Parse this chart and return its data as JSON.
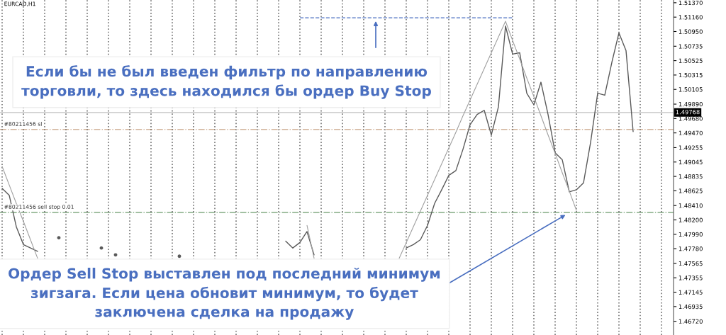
{
  "chart_data": {
    "type": "line",
    "title": "EURCAD,H1",
    "categories": [
      null,
      null,
      null,
      null,
      null,
      null,
      null,
      null,
      null,
      null,
      null,
      null,
      null,
      null,
      null,
      null,
      null,
      null,
      null,
      null,
      null,
      null,
      null,
      null,
      null,
      null,
      null,
      null,
      null,
      null,
      null,
      null,
      null,
      null,
      null,
      null,
      null,
      null,
      null,
      null,
      null,
      null,
      null,
      null,
      null,
      null,
      null,
      null,
      null,
      null,
      null,
      null,
      null,
      null,
      null,
      null,
      null,
      null,
      null,
      null,
      null,
      null,
      null,
      null,
      null,
      null,
      null,
      null,
      null,
      null,
      null,
      null,
      null,
      null,
      null,
      null,
      null,
      null,
      null,
      null,
      null,
      null,
      null,
      null,
      null,
      null,
      null,
      null,
      null,
      null,
      null,
      null,
      null,
      null,
      null
    ],
    "series": [
      {
        "color": "#5a5a5a",
        "values": [
          1.4866,
          1.4856,
          1.481,
          1.4784,
          1.4779,
          1.4774,
          null,
          null,
          1.4794,
          null,
          null,
          null,
          null,
          null,
          1.4779,
          null,
          1.4769,
          null,
          null,
          null,
          null,
          null,
          null,
          null,
          null,
          1.4767,
          null,
          null,
          null,
          null,
          null,
          null,
          null,
          null,
          null,
          null,
          null,
          null,
          null,
          null,
          1.4789,
          1.4779,
          1.4787,
          1.4803,
          1.4769,
          null,
          null,
          null,
          null,
          null,
          null,
          null,
          null,
          null,
          null,
          null,
          null,
          1.4779,
          1.4784,
          1.4791,
          1.4812,
          1.4844,
          1.4864,
          1.4885,
          1.4892,
          1.4923,
          1.4959,
          1.4974,
          1.498,
          1.4944,
          1.4985,
          1.5103,
          1.5062,
          1.5064,
          1.5005,
          1.4988,
          1.5021,
          1.4974,
          1.4918,
          1.4908,
          1.4861,
          1.4864,
          1.4874,
          1.4933,
          1.5005,
          1.5002,
          1.505,
          1.5093,
          1.5067,
          1.4949,
          null,
          null,
          null,
          null,
          null
        ]
      },
      {
        "color": "#a0a0a0",
        "values": [
          1.4898,
          1.4871,
          1.4844,
          1.4818,
          1.4791,
          1.4764,
          null,
          null,
          null,
          null,
          null,
          null,
          null,
          null,
          null,
          null,
          null,
          null,
          null,
          null,
          null,
          null,
          null,
          null,
          null,
          null,
          null,
          null,
          null,
          null,
          null,
          null,
          null,
          null,
          null,
          null,
          null,
          null,
          null,
          null,
          null,
          null,
          null,
          1.4812,
          1.4764,
          null,
          null,
          null,
          null,
          null,
          null,
          null,
          null,
          null,
          null,
          null,
          1.4764,
          1.4787,
          1.481,
          1.4833,
          1.4856,
          1.4879,
          1.4902,
          1.4925,
          1.4948,
          1.4972,
          1.4995,
          1.5018,
          1.5041,
          1.5064,
          1.5087,
          1.511,
          1.5082,
          1.5055,
          1.5027,
          1.5,
          1.4972,
          1.4944,
          1.4917,
          1.4889,
          1.4862,
          1.4834,
          null,
          null,
          null,
          null,
          null,
          null,
          null,
          null,
          null,
          null,
          null,
          null,
          null
        ]
      },
      {
        "color": "#4a6fc0",
        "line_style": "dashed",
        "values": [
          null,
          null,
          null,
          null,
          null,
          null,
          null,
          null,
          null,
          null,
          null,
          null,
          null,
          null,
          null,
          null,
          null,
          null,
          null,
          null,
          null,
          null,
          null,
          null,
          null,
          null,
          null,
          null,
          null,
          null,
          null,
          null,
          null,
          null,
          null,
          null,
          null,
          null,
          null,
          null,
          null,
          null,
          1.5115,
          1.5115,
          1.5115,
          1.5115,
          1.5115,
          1.5115,
          1.5115,
          1.5115,
          1.5115,
          1.5115,
          1.5115,
          1.5115,
          1.5115,
          1.5115,
          1.5115,
          1.5115,
          1.5115,
          1.5115,
          1.5115,
          1.5115,
          1.5115,
          1.5115,
          1.5115,
          1.5115,
          1.5115,
          1.5115,
          1.5115,
          1.5115,
          1.5115,
          1.5115,
          1.5115,
          null,
          null,
          null,
          null,
          null,
          null,
          null,
          null,
          null,
          null,
          null,
          null,
          null,
          null,
          null,
          null,
          null,
          null,
          null,
          null,
          null,
          null
        ]
      }
    ],
    "ylim": [
      1.4652,
      1.5141
    ],
    "yticks": [
      {
        "value": 1.5137,
        "label": "1.51370"
      },
      {
        "value": 1.5116,
        "label": "1.51160"
      },
      {
        "value": 1.5095,
        "label": "1.50950"
      },
      {
        "value": 1.50735,
        "label": "1.50735"
      },
      {
        "value": 1.50525,
        "label": "1.50525"
      },
      {
        "value": 1.50315,
        "label": "1.50315"
      },
      {
        "value": 1.50105,
        "label": "1.50105"
      },
      {
        "value": 1.4989,
        "label": "1.49890"
      },
      {
        "value": 1.4968,
        "label": "1.49680"
      },
      {
        "value": 1.4947,
        "label": "1.49470"
      },
      {
        "value": 1.49255,
        "label": "1.49255"
      },
      {
        "value": 1.49045,
        "label": "1.49045"
      },
      {
        "value": 1.48835,
        "label": "1.48835"
      },
      {
        "value": 1.48625,
        "label": "1.48625"
      },
      {
        "value": 1.4841,
        "label": "1.48410"
      },
      {
        "value": 1.482,
        "label": "1.48200"
      },
      {
        "value": 1.4799,
        "label": "1.47990"
      },
      {
        "value": 1.4778,
        "label": "1.47780"
      },
      {
        "value": 1.47565,
        "label": "1.47565"
      },
      {
        "value": 1.47355,
        "label": "1.47355"
      },
      {
        "value": 1.47145,
        "label": "1.47145"
      },
      {
        "value": 1.46935,
        "label": "1.46935"
      },
      {
        "value": 1.4672,
        "label": "1.46720"
      }
    ],
    "ref_lines": [
      {
        "axis": "y",
        "value": 1.49768,
        "label": "1.49768",
        "color": "#c0c0c0",
        "line_style": "solid"
      },
      {
        "axis": "y",
        "value": 1.4952,
        "label": "#80211456 sl",
        "color": "#d2b49c",
        "line_style": "dashdot"
      },
      {
        "axis": "y",
        "value": 1.4831,
        "label": "#80211456 sell stop 0.01",
        "color": "#6a9a6a",
        "line_style": "dashdot"
      }
    ],
    "annotations": [
      "Если бы не был введен фильтр по направлению\nторговли, то здесь находился бы ордер Buy Stop",
      "Ордер Sell Stop выставлен под последний минимум\nзигзага. Если цена обновит минимум, то будет\nзаключена сделка на продажу"
    ],
    "grid": "x",
    "tick_labels": "y"
  }
}
